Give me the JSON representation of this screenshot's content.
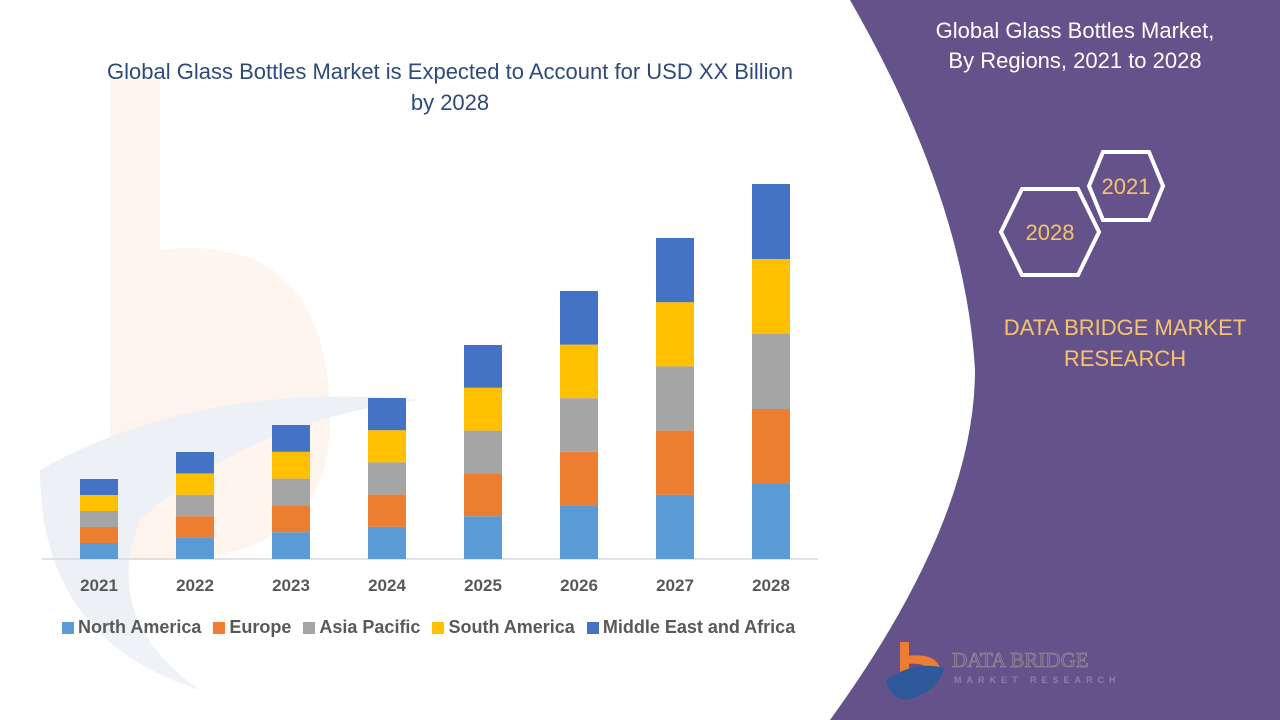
{
  "chart_data": {
    "type": "bar",
    "stacked": true,
    "title": "Global Glass Bottles Market is Expected to Account for USD XX Billion by 2028",
    "xlabel": "",
    "ylabel": "",
    "categories": [
      "2021",
      "2022",
      "2023",
      "2024",
      "2025",
      "2026",
      "2027",
      "2028"
    ],
    "series": [
      {
        "name": "North America",
        "color": "#5b9bd5",
        "values": [
          16,
          21.4,
          26.8,
          32.2,
          42.8,
          53.6,
          64.2,
          75
        ]
      },
      {
        "name": "Europe",
        "color": "#ed7d31",
        "values": [
          16,
          21.4,
          26.8,
          32.2,
          42.8,
          53.6,
          64.2,
          75
        ]
      },
      {
        "name": "Asia Pacific",
        "color": "#a5a5a5",
        "values": [
          16,
          21.4,
          26.8,
          32.2,
          42.8,
          53.6,
          64.2,
          75
        ]
      },
      {
        "name": "South America",
        "color": "#ffc000",
        "values": [
          16,
          21.4,
          26.8,
          32.2,
          42.8,
          53.6,
          64.2,
          75
        ]
      },
      {
        "name": "Middle East and Africa",
        "color": "#4472c4",
        "values": [
          16,
          21.4,
          26.8,
          32.2,
          42.8,
          53.6,
          64.2,
          75
        ]
      }
    ],
    "grid": false,
    "y_axis_visible": false,
    "legend_position": "bottom"
  },
  "side_panel": {
    "title_line1": "Global Glass Bottles Market,",
    "title_line2": "By Regions, 2021 to 2028",
    "hex_start": "2021",
    "hex_end": "2028",
    "brand_line1": "DATA BRIDGE MARKET",
    "brand_line2": "RESEARCH",
    "color": "#65528a"
  },
  "logo": {
    "name": "DATA BRIDGE",
    "sub": "MARKET RESEARCH"
  }
}
